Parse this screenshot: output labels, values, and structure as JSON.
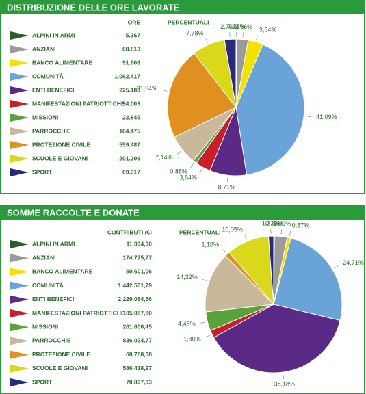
{
  "chart_data": [
    {
      "type": "pie",
      "title": "DISTRIBUZIONE DELLE ORE LAVORATE",
      "value_header": "ORE",
      "percent_header": "PERCENTUALI",
      "categories": [
        "ALPINI IN ARMI",
        "ANZIANI",
        "BANCO ALIMENTARE",
        "COMUNITÀ",
        "ENTI BENEFICI",
        "MANIFESTAZIONI PATRIOTTICHE",
        "MISSIONI",
        "PARROCCHIE",
        "PROTEZIONE CIVILE",
        "SCUOLE E GIOVANI",
        "SPORT"
      ],
      "colors": [
        "#2f5b2f",
        "#9b9b9b",
        "#f5e100",
        "#6aa3d8",
        "#5b2a86",
        "#c8202a",
        "#5aa33a",
        "#c9b99a",
        "#e0901e",
        "#d9d81a",
        "#2a2a7a"
      ],
      "values": [
        5367,
        68813,
        91608,
        1062417,
        225183,
        94003,
        22845,
        184475,
        559487,
        201206,
        69917
      ],
      "value_labels": [
        "5.367",
        "68.813",
        "91.608",
        "1.062.417",
        "225.183",
        "94.003",
        "22.845",
        "184.475",
        "559.487",
        "201.206",
        "69.917"
      ],
      "percentages": [
        0.21,
        2.66,
        3.54,
        41.09,
        8.71,
        3.64,
        0.88,
        7.14,
        21.64,
        7.78,
        2.7
      ],
      "percentage_labels": [
        "0,21%",
        "2,66%",
        "3,54%",
        "41,09%",
        "8,71%",
        "3,64%",
        "0,88%",
        "7,14%",
        "21,64%",
        "7,78%",
        "2,70%"
      ]
    },
    {
      "type": "pie",
      "title": "SOMME RACCOLTE E DONATE",
      "value_header": "CONTRIBUTI (€)",
      "percent_header": "PERCENTUALI",
      "categories": [
        "ALPINI IN ARMI",
        "ANZIANI",
        "BANCO ALIMENTARE",
        "COMUNITÀ",
        "ENTI BENEFICI",
        "MANIFESTAZIONI PATRIOTTICHE",
        "MISSIONI",
        "PARROCCHIE",
        "PROTEZIONE CIVILE",
        "SCUOLE E GIOVANI",
        "SPORT"
      ],
      "colors": [
        "#2f5b2f",
        "#9b9b9b",
        "#f5e100",
        "#6aa3d8",
        "#5b2a86",
        "#c8202a",
        "#5aa33a",
        "#c9b99a",
        "#e0901e",
        "#d9d81a",
        "#2a2a7a"
      ],
      "values": [
        11934,
        174775.77,
        50601.06,
        1442501.79,
        2229084.56,
        105087.8,
        261606.45,
        836024.77,
        68768.08,
        586418.97,
        70897.83
      ],
      "value_labels": [
        "11.934,00",
        "174.775,77",
        "50.601,06",
        "1.442.501,79",
        "2.229.084,56",
        "105.087,80",
        "261.606,45",
        "836.024,77",
        "68.768,08",
        "586.418,97",
        "70.897,83"
      ],
      "percentages": [
        0.2,
        2.99,
        0.87,
        24.71,
        38.18,
        1.8,
        4.48,
        14.32,
        1.18,
        10.05,
        1.21
      ],
      "percentage_labels": [
        "0,20%",
        "2,99%",
        "0,87%",
        "24,71%",
        "38,18%",
        "1,80%",
        "4,48%",
        "14,32%",
        "1,18%",
        "10,05%",
        "1,21%"
      ]
    }
  ]
}
